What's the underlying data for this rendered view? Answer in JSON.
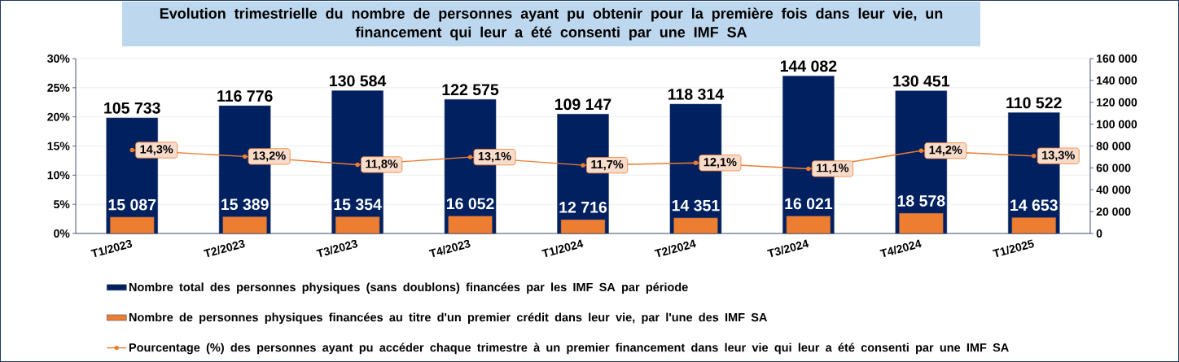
{
  "chart_data": {
    "type": "bar",
    "title": "Evolution trimestrielle du nombre de personnes ayant pu obtenir pour la première fois dans leur vie, un financement qui leur a été consenti par une IMF SA",
    "categories": [
      "T1/2023",
      "T2/2023",
      "T3/2023",
      "T4/2023",
      "T1/2024",
      "T2/2024",
      "T3/2024",
      "T4/2024",
      "T1/2025"
    ],
    "series": [
      {
        "name": "Nombre total des personnes physiques (sans doublons) financées par les IMF SA par période",
        "axis": "y2",
        "color": "#002060",
        "values": [
          105733,
          116776,
          130584,
          122575,
          109147,
          118314,
          144082,
          130451,
          110522
        ],
        "value_labels": [
          "105 733",
          "116 776",
          "130 584",
          "122 575",
          "109 147",
          "118 314",
          "144 082",
          "130 451",
          "110 522"
        ]
      },
      {
        "name": "Nombre de personnes physiques financées au titre d'un premier crédit dans leur vie, par l'une des IMF SA",
        "axis": "y2",
        "color": "#ED7D31",
        "values": [
          15087,
          15389,
          15354,
          16052,
          12716,
          14351,
          16021,
          18578,
          14653
        ],
        "value_labels": [
          "15 087",
          "15 389",
          "15 354",
          "16 052",
          "12 716",
          "14 351",
          "16 021",
          "18 578",
          "14 653"
        ]
      },
      {
        "name": "Pourcentage (%) des personnes ayant pu accéder chaque trimestre à un premier financement dans leur vie qui leur a été consenti par une IMF SA",
        "type": "line",
        "marker": "circle",
        "color": "#ED7D31",
        "values": [
          14.3,
          13.2,
          11.8,
          13.1,
          11.7,
          12.1,
          11.1,
          14.2,
          13.3
        ],
        "value_labels": [
          "14,3%",
          "13,2%",
          "11,8%",
          "13,1%",
          "11,7%",
          "12,1%",
          "11,1%",
          "14,2%",
          "13,3%"
        ]
      }
    ],
    "ylim": [
      0,
      30
    ],
    "yticks": [
      {
        "value": 0,
        "label": "0%"
      },
      {
        "value": 5,
        "label": "5%"
      },
      {
        "value": 10,
        "label": "10%"
      },
      {
        "value": 15,
        "label": "15%"
      },
      {
        "value": 20,
        "label": "20%"
      },
      {
        "value": 25,
        "label": "25%"
      },
      {
        "value": 30,
        "label": "30%"
      }
    ],
    "y2lim": [
      0,
      160000
    ],
    "y2ticks": [
      0,
      {
        "value": 20000,
        "label": "20 000"
      },
      {
        "value": 40000,
        "label": "40 000"
      },
      {
        "value": 60000,
        "label": "60 000"
      },
      {
        "value": 80000,
        "label": "80 000"
      },
      {
        "value": 100000,
        "label": "100 000"
      },
      {
        "value": 120000,
        "label": "120 000"
      },
      {
        "value": 140000,
        "label": "140 000"
      },
      {
        "value": 160000,
        "label": "160 000"
      }
    ],
    "grid": "y",
    "legend": "bottom"
  }
}
